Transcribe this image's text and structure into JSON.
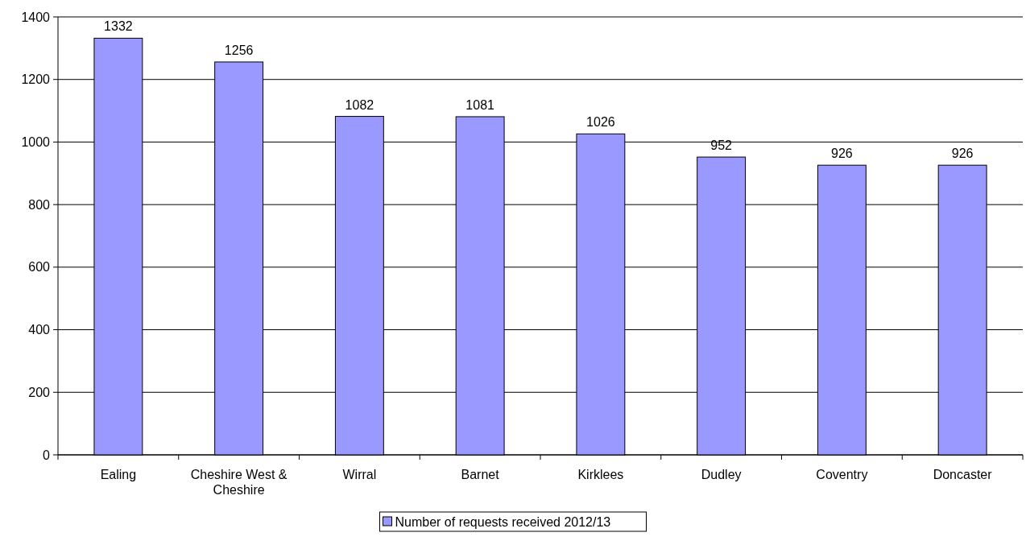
{
  "chart_data": {
    "type": "bar",
    "categories": [
      "Ealing",
      "Cheshire West & Cheshire",
      "Wirral",
      "Barnet",
      "Kirklees",
      "Dudley",
      "Coventry",
      "Doncaster"
    ],
    "series": [
      {
        "name": "Number of requests received 2012/13",
        "color": "#9999ff",
        "values": [
          1332,
          1256,
          1082,
          1081,
          1026,
          952,
          926,
          926
        ]
      }
    ],
    "ylim": [
      0,
      1400
    ],
    "yticks": [
      0,
      200,
      400,
      600,
      800,
      1000,
      1200,
      1400
    ],
    "grid": "y",
    "legend": "bottom",
    "data_labels": true
  }
}
